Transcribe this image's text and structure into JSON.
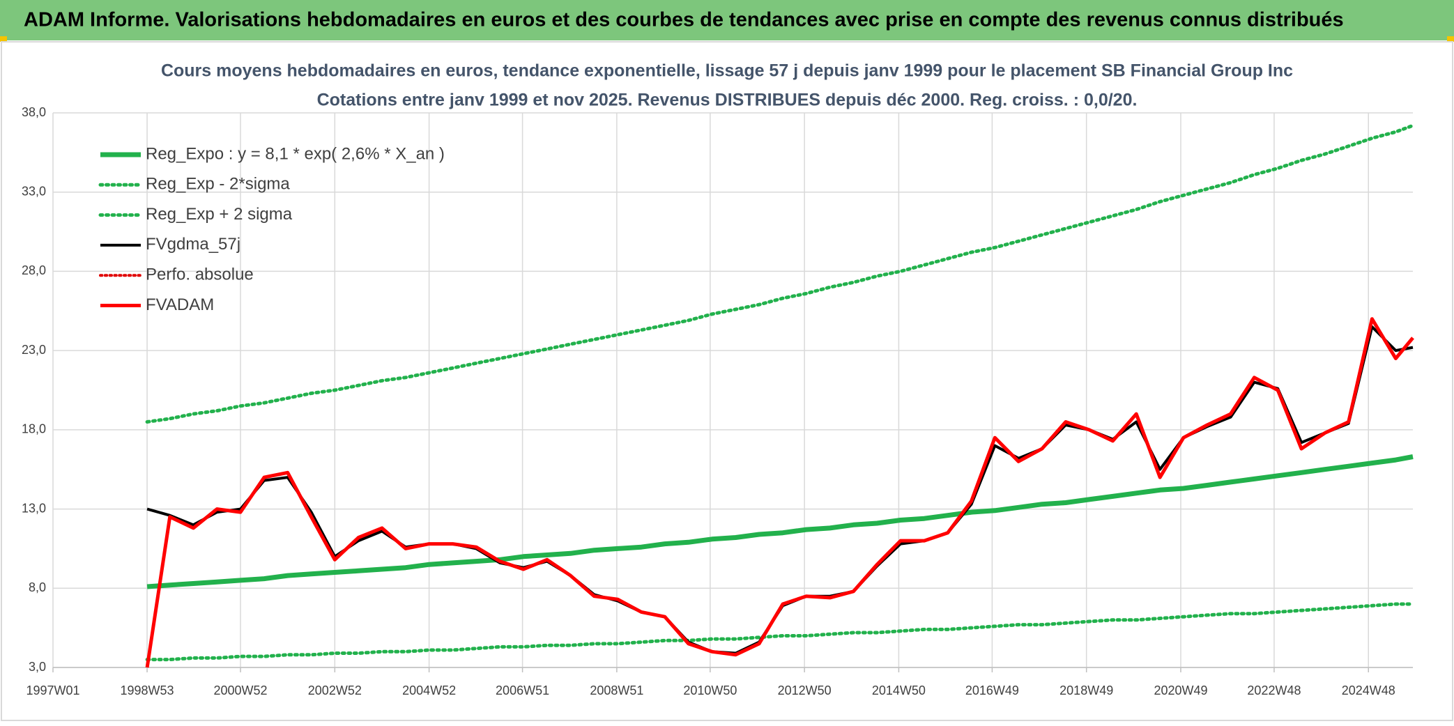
{
  "chart_data": {
    "type": "line",
    "header": "ADAM Informe. Valorisations hebdomadaires en euros et des courbes de tendances avec prise en compte des revenus connus distribués",
    "title": "Cours moyens hebdomadaires en euros, tendance exponentielle, lissage 57 j depuis janv 1999 pour le placement SB Financial Group Inc",
    "subtitle": "Cotations entre janv 1999 et nov 2025. Revenus DISTRIBUES depuis déc 2000. Reg. croiss. : 0,0/20.",
    "x": [
      "1998W53",
      "1999W26",
      "1999W52",
      "2000W26",
      "2000W52",
      "2001W26",
      "2001W52",
      "2002W26",
      "2002W52",
      "2003W26",
      "2003W52",
      "2004W26",
      "2004W52",
      "2005W26",
      "2005W52",
      "2006W26",
      "2006W52",
      "2007W26",
      "2007W52",
      "2008W26",
      "2008W52",
      "2009W26",
      "2009W52",
      "2010W26",
      "2010W52",
      "2011W26",
      "2011W52",
      "2012W26",
      "2012W52",
      "2013W26",
      "2013W52",
      "2014W26",
      "2014W52",
      "2015W26",
      "2015W52",
      "2016W26",
      "2016W52",
      "2017W26",
      "2017W52",
      "2018W26",
      "2018W52",
      "2019W26",
      "2019W52",
      "2020W26",
      "2020W52",
      "2021W26",
      "2021W52",
      "2022W26",
      "2022W52",
      "2023W26",
      "2023W52",
      "2024W26",
      "2024W52",
      "2025W26",
      "2025W45"
    ],
    "xlim": [
      "1997W01",
      "2025W45"
    ],
    "xticks": [
      "1997W01",
      "1998W53",
      "2000W52",
      "2002W52",
      "2004W52",
      "2006W51",
      "2008W51",
      "2010W50",
      "2012W50",
      "2014W50",
      "2016W49",
      "2018W49",
      "2020W49",
      "2022W48",
      "2024W48"
    ],
    "ylim": [
      3,
      38
    ],
    "yticks": [
      {
        "value": 3,
        "label": "3,0"
      },
      {
        "value": 8,
        "label": "8,0"
      },
      {
        "value": 13,
        "label": "13,0"
      },
      {
        "value": 18,
        "label": "18,0"
      },
      {
        "value": 23,
        "label": "23,0"
      },
      {
        "value": 28,
        "label": "28,0"
      },
      {
        "value": 33,
        "label": "33,0"
      },
      {
        "value": 38,
        "label": "38,0"
      }
    ],
    "grid": true,
    "legend": "top-left",
    "series": [
      {
        "name": "Reg_Expo : y = 8,1 * exp( 2,6% *  X_an )",
        "color": "#22b14c",
        "dash": "solid",
        "width": 7,
        "values": [
          8.1,
          8.2,
          8.3,
          8.4,
          8.5,
          8.6,
          8.8,
          8.9,
          9.0,
          9.1,
          9.2,
          9.3,
          9.5,
          9.6,
          9.7,
          9.8,
          10.0,
          10.1,
          10.2,
          10.4,
          10.5,
          10.6,
          10.8,
          10.9,
          11.1,
          11.2,
          11.4,
          11.5,
          11.7,
          11.8,
          12.0,
          12.1,
          12.3,
          12.4,
          12.6,
          12.8,
          12.9,
          13.1,
          13.3,
          13.4,
          13.6,
          13.8,
          14.0,
          14.2,
          14.3,
          14.5,
          14.7,
          14.9,
          15.1,
          15.3,
          15.5,
          15.7,
          15.9,
          16.1,
          16.3
        ]
      },
      {
        "name": "Reg_Exp - 2*sigma",
        "color": "#22b14c",
        "dash": "dotted",
        "width": 5,
        "values": [
          3.5,
          3.5,
          3.6,
          3.6,
          3.7,
          3.7,
          3.8,
          3.8,
          3.9,
          3.9,
          4.0,
          4.0,
          4.1,
          4.1,
          4.2,
          4.3,
          4.3,
          4.4,
          4.4,
          4.5,
          4.5,
          4.6,
          4.7,
          4.7,
          4.8,
          4.8,
          4.9,
          5.0,
          5.0,
          5.1,
          5.2,
          5.2,
          5.3,
          5.4,
          5.4,
          5.5,
          5.6,
          5.7,
          5.7,
          5.8,
          5.9,
          6.0,
          6.0,
          6.1,
          6.2,
          6.3,
          6.4,
          6.4,
          6.5,
          6.6,
          6.7,
          6.8,
          6.9,
          7.0,
          7.0
        ]
      },
      {
        "name": "Reg_Exp + 2 sigma",
        "color": "#22b14c",
        "dash": "dotted",
        "width": 5,
        "values": [
          18.5,
          18.7,
          19.0,
          19.2,
          19.5,
          19.7,
          20.0,
          20.3,
          20.5,
          20.8,
          21.1,
          21.3,
          21.6,
          21.9,
          22.2,
          22.5,
          22.8,
          23.1,
          23.4,
          23.7,
          24.0,
          24.3,
          24.6,
          24.9,
          25.3,
          25.6,
          25.9,
          26.3,
          26.6,
          27.0,
          27.3,
          27.7,
          28.0,
          28.4,
          28.8,
          29.2,
          29.5,
          29.9,
          30.3,
          30.7,
          31.1,
          31.5,
          31.9,
          32.4,
          32.8,
          33.2,
          33.6,
          34.1,
          34.5,
          35.0,
          35.4,
          35.9,
          36.4,
          36.8,
          37.2
        ]
      },
      {
        "name": "FVgdma_57j",
        "color": "#000000",
        "dash": "solid",
        "width": 4,
        "values": [
          13.0,
          12.6,
          12.0,
          12.8,
          13.0,
          14.8,
          15.0,
          12.8,
          10.0,
          11.0,
          11.6,
          10.6,
          10.8,
          10.8,
          10.5,
          9.6,
          9.3,
          9.7,
          8.8,
          7.6,
          7.2,
          6.5,
          6.2,
          4.6,
          4.0,
          3.9,
          4.6,
          6.9,
          7.5,
          7.5,
          7.8,
          9.4,
          10.8,
          11.0,
          11.5,
          13.3,
          17.0,
          16.2,
          16.8,
          18.3,
          18.0,
          17.4,
          18.5,
          15.5,
          17.5,
          18.2,
          18.8,
          21.0,
          20.6,
          17.2,
          17.8,
          18.4,
          24.5,
          23.0,
          23.2
        ]
      },
      {
        "name": "Perfo. absolue",
        "color": "#e00000",
        "dash": "dotted",
        "width": 4,
        "values": [
          null,
          null,
          null,
          null,
          null,
          null,
          null,
          null,
          null,
          null,
          null,
          null,
          null,
          null,
          null,
          null,
          null,
          null,
          null,
          null,
          null,
          null,
          null,
          null,
          null,
          null,
          null,
          null,
          null,
          null,
          null,
          null,
          null,
          null,
          null,
          null,
          null,
          null,
          null,
          null,
          null,
          null,
          null,
          null,
          null,
          null,
          null,
          null,
          null,
          null,
          null,
          null,
          null,
          null,
          null
        ]
      },
      {
        "name": "FVADAM",
        "color": "#ff0000",
        "dash": "solid",
        "width": 5,
        "values": [
          3,
          12.5,
          11.8,
          13.0,
          12.8,
          15.0,
          15.3,
          12.5,
          9.8,
          11.2,
          11.8,
          10.5,
          10.8,
          10.8,
          10.6,
          9.7,
          9.2,
          9.8,
          8.8,
          7.5,
          7.3,
          6.5,
          6.2,
          4.5,
          4.0,
          3.8,
          4.5,
          7.0,
          7.5,
          7.4,
          7.8,
          9.5,
          11.0,
          11.0,
          11.5,
          13.5,
          17.5,
          16.0,
          16.8,
          18.5,
          18.0,
          17.3,
          19.0,
          15.0,
          17.5,
          18.3,
          19.0,
          21.3,
          20.5,
          16.8,
          17.8,
          18.5,
          25.0,
          22.5,
          23.8
        ]
      }
    ]
  }
}
